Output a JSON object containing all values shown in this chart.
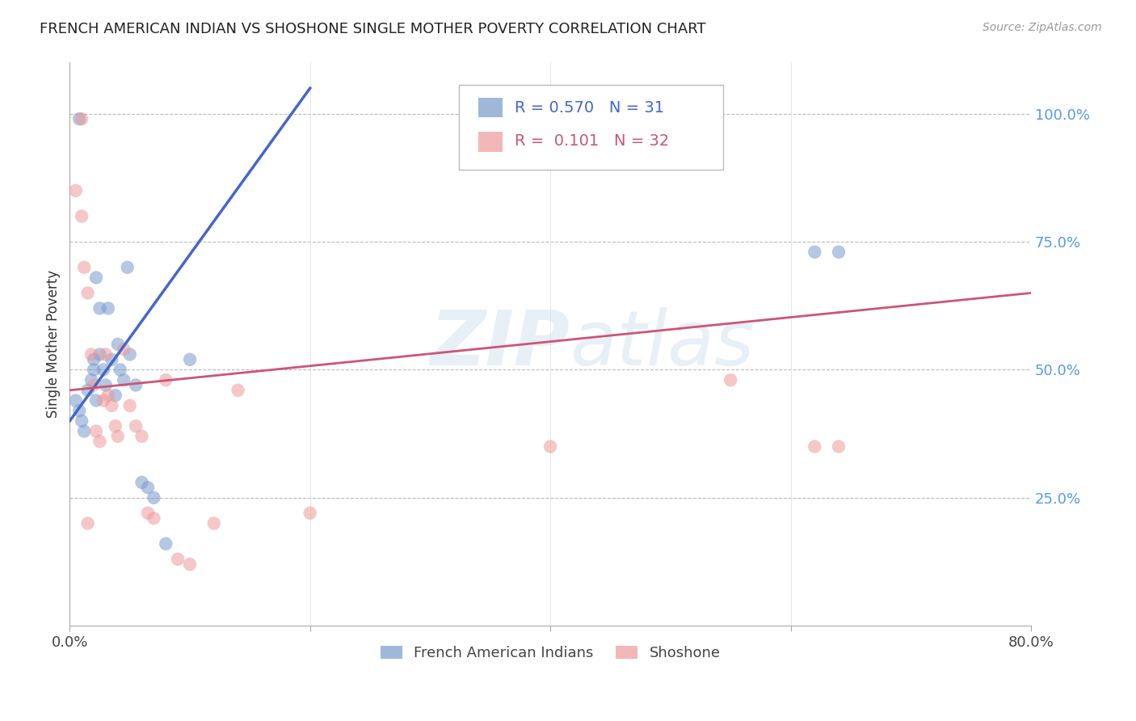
{
  "title": "FRENCH AMERICAN INDIAN VS SHOSHONE SINGLE MOTHER POVERTY CORRELATION CHART",
  "source": "Source: ZipAtlas.com",
  "ylabel": "Single Mother Poverty",
  "right_yticks": [
    "100.0%",
    "75.0%",
    "50.0%",
    "25.0%"
  ],
  "right_ytick_vals": [
    1.0,
    0.75,
    0.5,
    0.25
  ],
  "xlim": [
    0.0,
    0.8
  ],
  "ylim": [
    0.0,
    1.1
  ],
  "blue_R": "0.570",
  "blue_N": "31",
  "pink_R": "0.101",
  "pink_N": "32",
  "legend_label_blue": "French American Indians",
  "legend_label_pink": "Shoshone",
  "watermark": "ZIPatlas",
  "blue_scatter_x": [
    0.005,
    0.008,
    0.008,
    0.01,
    0.012,
    0.015,
    0.018,
    0.02,
    0.02,
    0.022,
    0.022,
    0.025,
    0.025,
    0.028,
    0.03,
    0.032,
    0.035,
    0.038,
    0.04,
    0.042,
    0.045,
    0.048,
    0.05,
    0.055,
    0.06,
    0.065,
    0.07,
    0.08,
    0.1,
    0.62,
    0.64
  ],
  "blue_scatter_y": [
    0.44,
    0.42,
    0.99,
    0.4,
    0.38,
    0.46,
    0.48,
    0.5,
    0.52,
    0.44,
    0.68,
    0.62,
    0.53,
    0.5,
    0.47,
    0.62,
    0.52,
    0.45,
    0.55,
    0.5,
    0.48,
    0.7,
    0.53,
    0.47,
    0.28,
    0.27,
    0.25,
    0.16,
    0.52,
    0.73,
    0.73
  ],
  "pink_scatter_x": [
    0.005,
    0.01,
    0.012,
    0.015,
    0.018,
    0.02,
    0.022,
    0.025,
    0.028,
    0.03,
    0.032,
    0.035,
    0.038,
    0.04,
    0.045,
    0.05,
    0.055,
    0.06,
    0.065,
    0.07,
    0.08,
    0.09,
    0.1,
    0.12,
    0.14,
    0.2,
    0.4,
    0.55,
    0.62,
    0.64,
    0.01,
    0.015
  ],
  "pink_scatter_y": [
    0.85,
    0.8,
    0.7,
    0.65,
    0.53,
    0.47,
    0.38,
    0.36,
    0.44,
    0.53,
    0.45,
    0.43,
    0.39,
    0.37,
    0.54,
    0.43,
    0.39,
    0.37,
    0.22,
    0.21,
    0.48,
    0.13,
    0.12,
    0.2,
    0.46,
    0.22,
    0.35,
    0.48,
    0.35,
    0.35,
    0.99,
    0.2
  ],
  "blue_line_x": [
    0.0,
    0.2
  ],
  "blue_line_y": [
    0.4,
    1.05
  ],
  "pink_line_x": [
    0.0,
    0.8
  ],
  "pink_line_y": [
    0.46,
    0.65
  ],
  "bg_color": "#ffffff",
  "blue_color": "#7799cc",
  "pink_color": "#ee9999",
  "line_blue": "#4466cc",
  "line_pink": "#cc5577",
  "title_color": "#222222",
  "right_axis_color": "#5599ee",
  "grid_color": "#bbbbbb"
}
